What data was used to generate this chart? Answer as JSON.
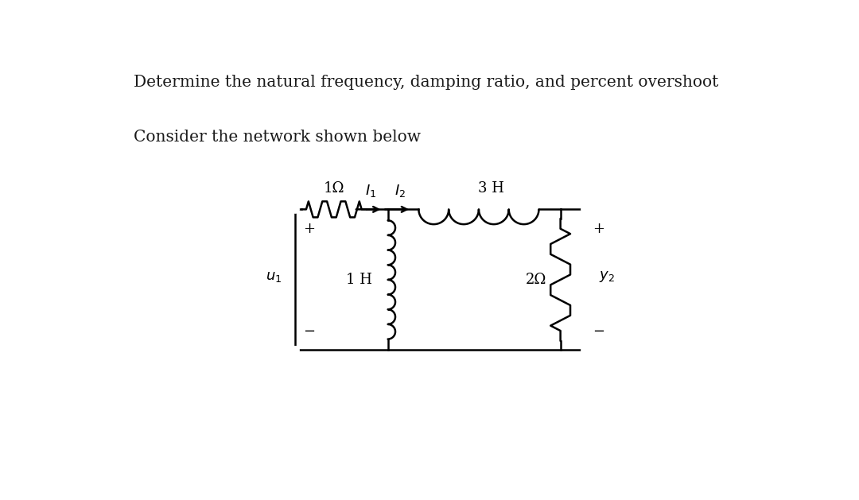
{
  "title1": "Determine the natural frequency, damping ratio, and percent overshoot",
  "title2": "Consider the network shown below",
  "title1_fontsize": 14.5,
  "title2_fontsize": 14.5,
  "bg_color": "#ffffff",
  "line_color": "#000000",
  "text_color": "#1a1a1a",
  "fig_width": 10.8,
  "fig_height": 6.29,
  "label_1ohm": "1Ω",
  "label_3H": "3 H",
  "label_1H": "1 H",
  "label_2ohm": "2Ω",
  "label_u1": "$u_1$",
  "label_v2": "$y_2$",
  "label_I1": "$I_1$",
  "label_I2": "$I_2$",
  "label_plus": "+",
  "label_minus": "−"
}
